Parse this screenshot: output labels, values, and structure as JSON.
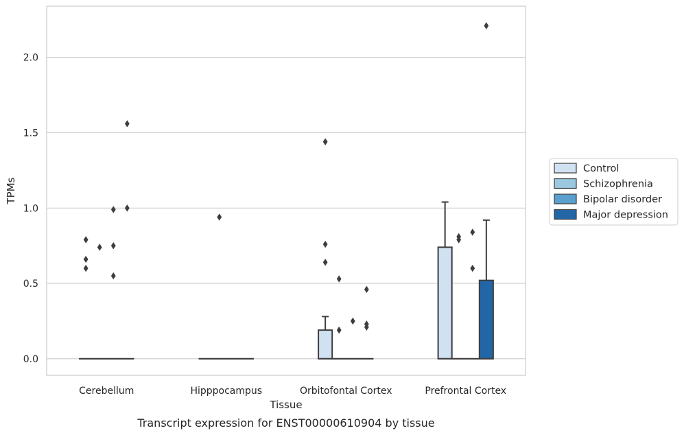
{
  "chart_data": {
    "type": "box",
    "title": "",
    "caption": "Transcript expression for ENST00000610904 by tissue",
    "xlabel": "Tissue",
    "ylabel": "TPMs",
    "ylim": [
      -0.11,
      2.34
    ],
    "yticks": [
      0.0,
      0.5,
      1.0,
      1.5,
      2.0
    ],
    "ytick_labels": [
      "0.0",
      "0.5",
      "1.0",
      "1.5",
      "2.0"
    ],
    "grid": "horizontal",
    "legend_position": "right",
    "categories": [
      "Cerebellum",
      "Hipppocampus",
      "Orbitofontal Cortex",
      "Prefrontal Cortex"
    ],
    "series": [
      {
        "name": "Control",
        "color": "#d0e1f2",
        "boxes": [
          {
            "q1": 0,
            "median": 0,
            "q3": 0,
            "whislo": 0,
            "whishi": 0,
            "fliers": [
              0.79,
              0.66,
              0.6
            ]
          },
          {
            "q1": 0,
            "median": 0,
            "q3": 0,
            "whislo": 0,
            "whishi": 0,
            "fliers": []
          },
          {
            "q1": 0,
            "median": 0,
            "q3": 0.19,
            "whislo": 0,
            "whishi": 0.28,
            "fliers": [
              1.44,
              0.76,
              0.64
            ]
          },
          {
            "q1": 0,
            "median": 0,
            "q3": 0.74,
            "whislo": 0,
            "whishi": 1.04,
            "fliers": []
          }
        ]
      },
      {
        "name": "Schizophrenia",
        "color": "#9ac8e0",
        "boxes": [
          {
            "q1": 0,
            "median": 0,
            "q3": 0,
            "whislo": 0,
            "whishi": 0,
            "fliers": [
              0.74
            ]
          },
          {
            "q1": 0,
            "median": 0,
            "q3": 0,
            "whislo": 0,
            "whishi": 0,
            "fliers": [
              0.94
            ]
          },
          {
            "q1": 0,
            "median": 0,
            "q3": 0,
            "whislo": 0,
            "whishi": 0,
            "fliers": [
              0.53,
              0.19
            ]
          },
          {
            "q1": 0,
            "median": 0,
            "q3": 0,
            "whislo": 0,
            "whishi": 0,
            "fliers": [
              0.81,
              0.79
            ]
          }
        ]
      },
      {
        "name": "Bipolar disorder",
        "color": "#5a9fcd",
        "boxes": [
          {
            "q1": 0,
            "median": 0,
            "q3": 0,
            "whislo": 0,
            "whishi": 0,
            "fliers": [
              0.99,
              0.75,
              0.55
            ]
          },
          {
            "q1": 0,
            "median": 0,
            "q3": 0,
            "whislo": 0,
            "whishi": 0,
            "fliers": []
          },
          {
            "q1": 0,
            "median": 0,
            "q3": 0,
            "whislo": 0,
            "whishi": 0,
            "fliers": [
              0.25
            ]
          },
          {
            "q1": 0,
            "median": 0,
            "q3": 0,
            "whislo": 0,
            "whishi": 0,
            "fliers": [
              0.84,
              0.6
            ]
          }
        ]
      },
      {
        "name": "Major depression",
        "color": "#2366a8",
        "boxes": [
          {
            "q1": 0,
            "median": 0,
            "q3": 0,
            "whislo": 0,
            "whishi": 0,
            "fliers": [
              1.56,
              1.0
            ]
          },
          {
            "q1": 0,
            "median": 0,
            "q3": 0,
            "whislo": 0,
            "whishi": 0,
            "fliers": []
          },
          {
            "q1": 0,
            "median": 0,
            "q3": 0,
            "whislo": 0,
            "whishi": 0,
            "fliers": [
              0.46,
              0.23,
              0.21
            ]
          },
          {
            "q1": 0,
            "median": 0,
            "q3": 0.52,
            "whislo": 0,
            "whishi": 0.92,
            "fliers": [
              2.21
            ]
          }
        ]
      }
    ]
  }
}
